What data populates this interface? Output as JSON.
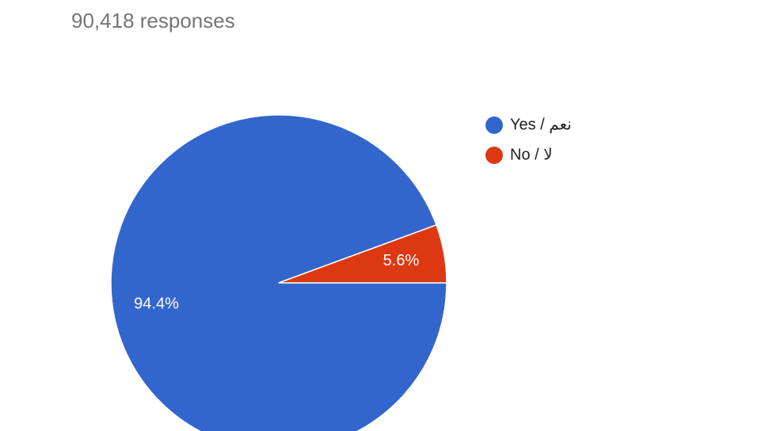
{
  "chart_data": {
    "type": "pie",
    "subtitle": "90,418 responses",
    "categories": [
      "Yes / نعم",
      "No / لا"
    ],
    "values": [
      94.4,
      5.6
    ],
    "value_labels": [
      "94.4%",
      "5.6%"
    ],
    "colors": [
      "#3366cc",
      "#dc3912"
    ],
    "legend": "right"
  }
}
